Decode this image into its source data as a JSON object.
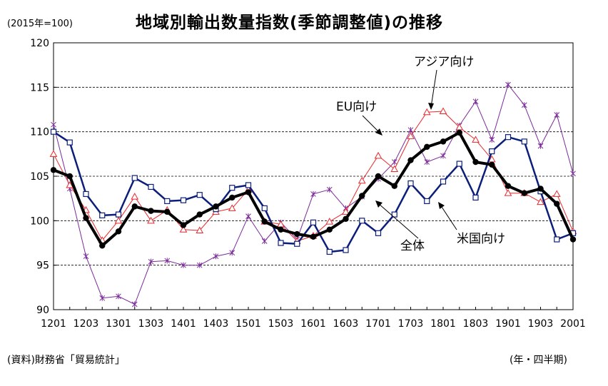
{
  "unit_note": "(2015年=100)",
  "source": "(資料)財務省「貿易統計」",
  "period_note": "(年・四半期)",
  "chart_data": {
    "type": "line",
    "title": "地域別輸出数量指数(季節調整値)の推移",
    "ylim": [
      90,
      120
    ],
    "yticks": [
      90,
      95,
      100,
      105,
      110,
      115,
      120
    ],
    "grid": "dashed horizontal",
    "x": [
      "1201",
      "1202",
      "1203",
      "1204",
      "1301",
      "1302",
      "1303",
      "1304",
      "1401",
      "1402",
      "1403",
      "1404",
      "1501",
      "1502",
      "1503",
      "1504",
      "1601",
      "1602",
      "1603",
      "1604",
      "1701",
      "1702",
      "1703",
      "1704",
      "1801",
      "1802",
      "1803",
      "1804",
      "1901",
      "1902",
      "1903",
      "1904",
      "2001"
    ],
    "xtick_labels": [
      "1201",
      "1203",
      "1301",
      "1303",
      "1401",
      "1403",
      "1501",
      "1503",
      "1601",
      "1603",
      "1701",
      "1703",
      "1801",
      "1803",
      "1901",
      "1903",
      "2001"
    ],
    "series": [
      {
        "name": "全体",
        "color": "#000000",
        "width": 4,
        "marker": "dot",
        "values": [
          105.7,
          105.0,
          100.3,
          97.2,
          98.8,
          101.6,
          101.1,
          101.0,
          99.5,
          100.7,
          101.6,
          102.6,
          103.2,
          99.9,
          99.0,
          98.5,
          98.2,
          99.0,
          100.2,
          102.8,
          105.0,
          103.9,
          106.8,
          108.3,
          108.9,
          109.9,
          106.6,
          106.3,
          103.9,
          103.1,
          103.6,
          101.9,
          97.9
        ]
      },
      {
        "name": "米国向け",
        "color": "#0b1f7a",
        "width": 2.5,
        "marker": "square",
        "values": [
          110.0,
          108.8,
          103.0,
          100.6,
          100.7,
          104.8,
          103.8,
          102.2,
          102.3,
          102.9,
          101.3,
          103.7,
          104.0,
          101.4,
          97.5,
          97.4,
          99.8,
          96.5,
          96.7,
          100.0,
          98.6,
          100.7,
          104.2,
          102.2,
          104.4,
          106.4,
          102.6,
          107.8,
          109.4,
          108.9,
          103.3,
          97.9,
          98.6
        ]
      },
      {
        "name": "アジア向け",
        "color": "#e8292c",
        "width": 1,
        "marker": "triangle",
        "values": [
          107.5,
          104.0,
          101.2,
          97.8,
          100.0,
          102.7,
          100.0,
          101.2,
          99.0,
          98.9,
          101.0,
          101.4,
          103.5,
          99.9,
          99.6,
          97.7,
          98.3,
          99.9,
          101.0,
          104.5,
          107.3,
          105.8,
          109.5,
          112.2,
          112.3,
          110.5,
          109.1,
          106.9,
          103.1,
          103.1,
          102.1,
          103.0,
          98.8
        ]
      },
      {
        "name": "EU向け",
        "color": "#7b2a9a",
        "width": 1,
        "marker": "x",
        "values": [
          110.8,
          103.6,
          96.0,
          91.3,
          91.5,
          90.6,
          95.4,
          95.5,
          95.0,
          95.0,
          96.0,
          96.4,
          100.5,
          97.7,
          99.8,
          97.9,
          103.0,
          103.5,
          101.4,
          102.7,
          104.7,
          106.6,
          110.2,
          106.6,
          107.3,
          110.7,
          113.4,
          109.1,
          115.3,
          113.0,
          108.4,
          111.9,
          105.3
        ]
      }
    ],
    "annotations": [
      "アジア向け",
      "EU向け",
      "全体",
      "米国向け"
    ]
  }
}
